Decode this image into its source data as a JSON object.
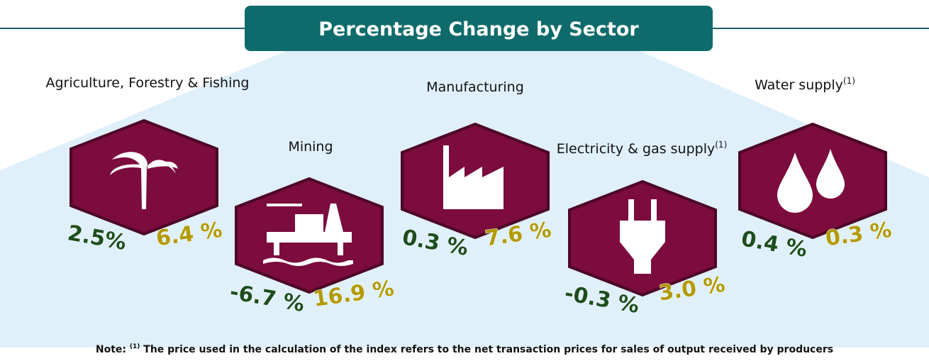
{
  "title": "Percentage Change by Sector",
  "sectors": [
    {
      "name": "Agriculture, Forestry & Fishing",
      "values": [
        "2.5%",
        "6.4 %"
      ]
    },
    {
      "name": "Mining",
      "values": [
        "-6.7 %",
        "16.9 %"
      ]
    },
    {
      "name": "Manufacturing",
      "values": [
        "0.3 %",
        "7.6 %"
      ]
    },
    {
      "name": "Electricity & gas supply",
      "note_mark": "(1)",
      "values": [
        "-0.3 %",
        "3.0 %"
      ]
    },
    {
      "name": "Water supply",
      "note_mark": "(1)",
      "values": [
        "0.4 %",
        "0.3 %"
      ]
    }
  ],
  "note": {
    "label": "Note:",
    "mark": "(1)",
    "text": "The price used in the calculation of the index refers to the net transaction prices for sales of output received by producers"
  }
}
